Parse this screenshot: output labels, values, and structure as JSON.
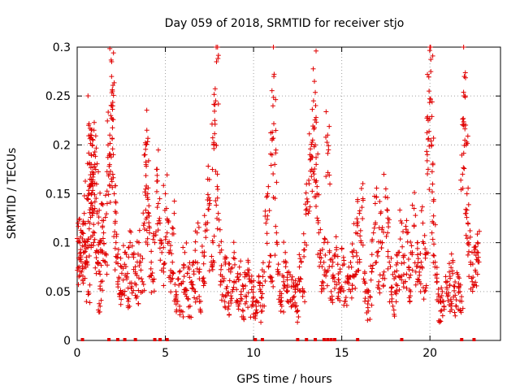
{
  "chart_data": {
    "type": "scatter",
    "title": "Day 059 of 2018, SRMTID for receiver stjo",
    "xlabel": "GPS time / hours",
    "ylabel": "SRMTID / TECUs",
    "xlim": [
      0,
      24
    ],
    "ylim": [
      0,
      0.3
    ],
    "xticks": [
      0,
      5,
      10,
      15,
      20
    ],
    "xtick_labels": [
      "0",
      "5",
      "10",
      "15",
      "20"
    ],
    "yticks": [
      0,
      0.05,
      0.1,
      0.15,
      0.2,
      0.25,
      0.3
    ],
    "ytick_labels": [
      "0",
      "0.05",
      "0.1",
      "0.15",
      "0.2",
      "0.25",
      "0.3"
    ],
    "grid": true,
    "legend": "none",
    "series": [
      {
        "name": "SRMTID",
        "color": "#e00000",
        "marker": "plus",
        "values_note": "dense point cloud sampled approximately from the figure",
        "points": [
          [
            0.05,
            0.12
          ],
          [
            0.1,
            0.065
          ],
          [
            0.15,
            0.1
          ],
          [
            0.2,
            0.085
          ],
          [
            0.25,
            0.07
          ],
          [
            0.3,
            0.11
          ],
          [
            0.35,
            0.09
          ],
          [
            0.4,
            0.13
          ],
          [
            0.45,
            0.1
          ],
          [
            0.5,
            0.08
          ],
          [
            0.55,
            0.145
          ],
          [
            0.6,
            0.095
          ],
          [
            0.62,
            0.05
          ],
          [
            0.65,
            0.22
          ],
          [
            0.68,
            0.15
          ],
          [
            0.7,
            0.18
          ],
          [
            0.72,
            0.12
          ],
          [
            0.75,
            0.21
          ],
          [
            0.78,
            0.14
          ],
          [
            0.8,
            0.19
          ],
          [
            0.82,
            0.16
          ],
          [
            0.85,
            0.2
          ],
          [
            0.88,
            0.13
          ],
          [
            0.9,
            0.205
          ],
          [
            0.92,
            0.17
          ],
          [
            0.95,
            0.215
          ],
          [
            0.98,
            0.11
          ],
          [
            1.0,
            0.18
          ],
          [
            1.05,
            0.09
          ],
          [
            1.1,
            0.16
          ],
          [
            1.15,
            0.08
          ],
          [
            1.2,
            0.12
          ],
          [
            1.25,
            0.1
          ],
          [
            1.3,
            0.035
          ],
          [
            1.35,
            0.06
          ],
          [
            1.4,
            0.14
          ],
          [
            1.45,
            0.09
          ],
          [
            1.5,
            0.11
          ],
          [
            1.6,
            0.08
          ],
          [
            1.7,
            0.14
          ],
          [
            1.75,
            0.2
          ],
          [
            1.8,
            0.17
          ],
          [
            1.85,
            0.21
          ],
          [
            1.9,
            0.23
          ],
          [
            1.95,
            0.27
          ],
          [
            2.0,
            0.255
          ],
          [
            2.02,
            0.24
          ],
          [
            2.05,
            0.19
          ],
          [
            2.1,
            0.15
          ],
          [
            2.15,
            0.12
          ],
          [
            2.2,
            0.1
          ],
          [
            2.25,
            0.085
          ],
          [
            2.3,
            0.06
          ],
          [
            2.4,
            0.045
          ],
          [
            2.5,
            0.075
          ],
          [
            2.6,
            0.05
          ],
          [
            2.7,
            0.09
          ],
          [
            2.8,
            0.065
          ],
          [
            2.9,
            0.04
          ],
          [
            3.0,
            0.1
          ],
          [
            3.1,
            0.055
          ],
          [
            3.2,
            0.085
          ],
          [
            3.3,
            0.07
          ],
          [
            3.4,
            0.045
          ],
          [
            3.5,
            0.1
          ],
          [
            3.6,
            0.08
          ],
          [
            3.7,
            0.06
          ],
          [
            3.8,
            0.12
          ],
          [
            3.85,
            0.19
          ],
          [
            3.9,
            0.18
          ],
          [
            3.95,
            0.215
          ],
          [
            4.0,
            0.15
          ],
          [
            4.05,
            0.13
          ],
          [
            4.1,
            0.11
          ],
          [
            4.2,
            0.08
          ],
          [
            4.3,
            0.06
          ],
          [
            4.4,
            0.1
          ],
          [
            4.5,
            0.175
          ],
          [
            4.6,
            0.14
          ],
          [
            4.7,
            0.12
          ],
          [
            4.8,
            0.09
          ],
          [
            4.9,
            0.07
          ],
          [
            5.0,
            0.15
          ],
          [
            5.1,
            0.11
          ],
          [
            5.2,
            0.09
          ],
          [
            5.3,
            0.06
          ],
          [
            5.4,
            0.08
          ],
          [
            5.5,
            0.13
          ],
          [
            5.6,
            0.05
          ],
          [
            5.7,
            0.04
          ],
          [
            5.8,
            0.07
          ],
          [
            5.9,
            0.03
          ],
          [
            6.0,
            0.06
          ],
          [
            6.1,
            0.09
          ],
          [
            6.2,
            0.045
          ],
          [
            6.3,
            0.075
          ],
          [
            6.4,
            0.035
          ],
          [
            6.5,
            0.06
          ],
          [
            6.6,
            0.08
          ],
          [
            6.7,
            0.05
          ],
          [
            6.8,
            0.11
          ],
          [
            6.9,
            0.07
          ],
          [
            7.0,
            0.04
          ],
          [
            7.1,
            0.09
          ],
          [
            7.2,
            0.06
          ],
          [
            7.3,
            0.12
          ],
          [
            7.4,
            0.165
          ],
          [
            7.5,
            0.14
          ],
          [
            7.6,
            0.08
          ],
          [
            7.7,
            0.1
          ],
          [
            7.75,
            0.2
          ],
          [
            7.8,
            0.225
          ],
          [
            7.85,
            0.245
          ],
          [
            7.9,
            0.285
          ],
          [
            7.95,
            0.17
          ],
          [
            8.0,
            0.13
          ],
          [
            8.1,
            0.09
          ],
          [
            8.2,
            0.06
          ],
          [
            8.3,
            0.045
          ],
          [
            8.4,
            0.08
          ],
          [
            8.5,
            0.055
          ],
          [
            8.6,
            0.035
          ],
          [
            8.7,
            0.07
          ],
          [
            8.8,
            0.05
          ],
          [
            8.9,
            0.09
          ],
          [
            9.0,
            0.06
          ],
          [
            9.1,
            0.04
          ],
          [
            9.2,
            0.075
          ],
          [
            9.3,
            0.05
          ],
          [
            9.4,
            0.03
          ],
          [
            9.5,
            0.065
          ],
          [
            9.6,
            0.045
          ],
          [
            9.7,
            0.08
          ],
          [
            9.8,
            0.06
          ],
          [
            9.9,
            0.035
          ],
          [
            10.0,
            0.055
          ],
          [
            10.1,
            0.025
          ],
          [
            10.2,
            0.04
          ],
          [
            10.3,
            0.065
          ],
          [
            10.4,
            0.05
          ],
          [
            10.5,
            0.03
          ],
          [
            10.6,
            0.07
          ],
          [
            10.7,
            0.12
          ],
          [
            10.8,
            0.15
          ],
          [
            10.9,
            0.08
          ],
          [
            11.0,
            0.06
          ],
          [
            11.05,
            0.205
          ],
          [
            11.1,
            0.24
          ],
          [
            11.15,
            0.27
          ],
          [
            11.2,
            0.18
          ],
          [
            11.3,
            0.11
          ],
          [
            11.4,
            0.07
          ],
          [
            11.5,
            0.05
          ],
          [
            11.6,
            0.035
          ],
          [
            11.7,
            0.06
          ],
          [
            11.8,
            0.09
          ],
          [
            11.9,
            0.05
          ],
          [
            12.0,
            0.07
          ],
          [
            12.1,
            0.04
          ],
          [
            12.2,
            0.065
          ],
          [
            12.3,
            0.045
          ],
          [
            12.4,
            0.055
          ],
          [
            12.5,
            0.03
          ],
          [
            12.6,
            0.06
          ],
          [
            12.7,
            0.08
          ],
          [
            12.8,
            0.05
          ],
          [
            12.9,
            0.1
          ],
          [
            13.0,
            0.16
          ],
          [
            13.1,
            0.13
          ],
          [
            13.2,
            0.19
          ],
          [
            13.3,
            0.175
          ],
          [
            13.35,
            0.205
          ],
          [
            13.4,
            0.245
          ],
          [
            13.45,
            0.265
          ],
          [
            13.5,
            0.2
          ],
          [
            13.55,
            0.18
          ],
          [
            13.6,
            0.15
          ],
          [
            13.7,
            0.11
          ],
          [
            13.8,
            0.08
          ],
          [
            13.9,
            0.06
          ],
          [
            14.0,
            0.1
          ],
          [
            14.1,
            0.07
          ],
          [
            14.2,
            0.21
          ],
          [
            14.25,
            0.195
          ],
          [
            14.3,
            0.09
          ],
          [
            14.4,
            0.05
          ],
          [
            14.5,
            0.08
          ],
          [
            14.6,
            0.06
          ],
          [
            14.7,
            0.095
          ],
          [
            14.8,
            0.045
          ],
          [
            14.9,
            0.07
          ],
          [
            15.0,
            0.055
          ],
          [
            15.1,
            0.085
          ],
          [
            15.2,
            0.04
          ],
          [
            15.3,
            0.06
          ],
          [
            15.4,
            0.075
          ],
          [
            15.5,
            0.05
          ],
          [
            15.6,
            0.09
          ],
          [
            15.7,
            0.065
          ],
          [
            15.8,
            0.11
          ],
          [
            15.9,
            0.08
          ],
          [
            16.0,
            0.13
          ],
          [
            16.1,
            0.1
          ],
          [
            16.2,
            0.145
          ],
          [
            16.3,
            0.07
          ],
          [
            16.4,
            0.05
          ],
          [
            16.5,
            0.03
          ],
          [
            16.6,
            0.045
          ],
          [
            16.7,
            0.07
          ],
          [
            16.8,
            0.11
          ],
          [
            16.9,
            0.14
          ],
          [
            17.0,
            0.09
          ],
          [
            17.1,
            0.06
          ],
          [
            17.2,
            0.13
          ],
          [
            17.3,
            0.1
          ],
          [
            17.4,
            0.07
          ],
          [
            17.5,
            0.155
          ],
          [
            17.6,
            0.11
          ],
          [
            17.7,
            0.08
          ],
          [
            17.8,
            0.05
          ],
          [
            17.9,
            0.035
          ],
          [
            18.0,
            0.07
          ],
          [
            18.1,
            0.05
          ],
          [
            18.2,
            0.09
          ],
          [
            18.3,
            0.065
          ],
          [
            18.4,
            0.12
          ],
          [
            18.5,
            0.085
          ],
          [
            18.6,
            0.06
          ],
          [
            18.7,
            0.11
          ],
          [
            18.8,
            0.075
          ],
          [
            18.9,
            0.05
          ],
          [
            19.0,
            0.09
          ],
          [
            19.1,
            0.135
          ],
          [
            19.2,
            0.07
          ],
          [
            19.3,
            0.1
          ],
          [
            19.4,
            0.06
          ],
          [
            19.5,
            0.08
          ],
          [
            19.6,
            0.12
          ],
          [
            19.7,
            0.05
          ],
          [
            19.8,
            0.09
          ],
          [
            19.85,
            0.19
          ],
          [
            19.9,
            0.225
          ],
          [
            19.95,
            0.255
          ],
          [
            20.0,
            0.3
          ],
          [
            20.05,
            0.275
          ],
          [
            20.1,
            0.2
          ],
          [
            20.15,
            0.16
          ],
          [
            20.2,
            0.12
          ],
          [
            20.3,
            0.08
          ],
          [
            20.4,
            0.06
          ],
          [
            20.5,
            0.045
          ],
          [
            20.6,
            0.03
          ],
          [
            20.7,
            0.05
          ],
          [
            20.8,
            0.035
          ],
          [
            20.9,
            0.06
          ],
          [
            21.0,
            0.045
          ],
          [
            21.1,
            0.07
          ],
          [
            21.2,
            0.04
          ],
          [
            21.3,
            0.08
          ],
          [
            21.4,
            0.055
          ],
          [
            21.5,
            0.035
          ],
          [
            21.6,
            0.065
          ],
          [
            21.7,
            0.05
          ],
          [
            21.8,
            0.04
          ],
          [
            21.85,
            0.17
          ],
          [
            21.9,
            0.22
          ],
          [
            21.95,
            0.27
          ],
          [
            22.0,
            0.25
          ],
          [
            22.05,
            0.2
          ],
          [
            22.1,
            0.15
          ],
          [
            22.15,
            0.12
          ],
          [
            22.2,
            0.1
          ],
          [
            22.3,
            0.08
          ],
          [
            22.4,
            0.06
          ],
          [
            22.5,
            0.09
          ],
          [
            22.6,
            0.07
          ],
          [
            22.7,
            0.1
          ],
          [
            22.75,
            0.085
          ]
        ],
        "zero_points_x": [
          0.3,
          1.8,
          2.3,
          2.7,
          3.3,
          4.4,
          4.7,
          5.1,
          10.1,
          10.5,
          12.5,
          13.0,
          13.5,
          14.0,
          14.2,
          14.4,
          14.6,
          15.9,
          18.4,
          21.8,
          22.5
        ]
      }
    ]
  }
}
